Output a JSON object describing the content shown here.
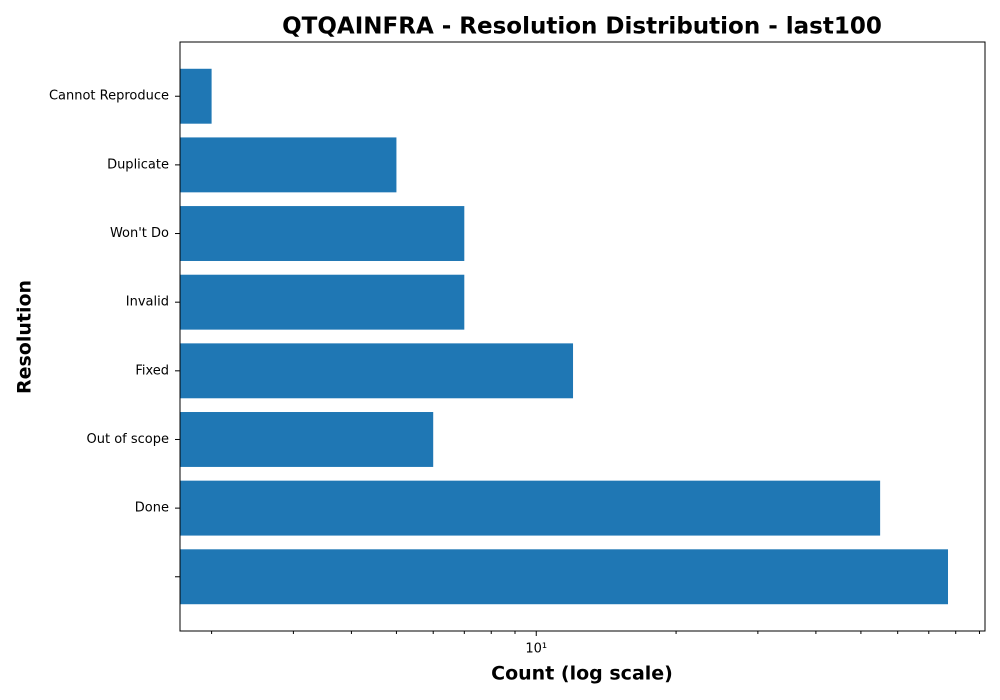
{
  "chart_data": {
    "type": "bar",
    "orientation": "horizontal",
    "title": "QTQAINFRA - Resolution Distribution - last100",
    "xlabel": "Count (log scale)",
    "ylabel": "Resolution",
    "categories": [
      "Cannot Reproduce",
      "Duplicate",
      "Won't Do",
      "Invalid",
      "Fixed",
      "Out of scope",
      "Done",
      null
    ],
    "values": [
      2,
      5,
      7,
      7,
      12,
      6,
      55,
      77
    ],
    "color": "#1f77b4",
    "xscale": "log",
    "xlim": [
      1.71,
      92.5
    ],
    "xticks": [
      {
        "value": 10,
        "label": "10¹"
      }
    ],
    "xticks_minor": [
      2,
      3,
      4,
      5,
      6,
      7,
      8,
      9,
      20,
      30,
      40,
      50,
      60,
      70,
      80,
      90
    ],
    "grid": false
  }
}
